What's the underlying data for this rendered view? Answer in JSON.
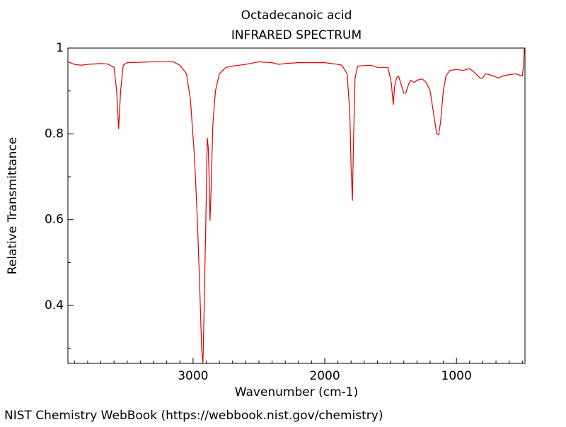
{
  "chart_data": {
    "type": "line",
    "title": "Octadecanoic acid",
    "subtitle": "INFRARED SPECTRUM",
    "xlabel": "Wavenumber (cm-1)",
    "ylabel": "Relative Transmittance",
    "source": "NIST Chemistry WebBook (https://webbook.nist.gov/chemistry)",
    "color": "#e00000",
    "xlim": [
      3950,
      480
    ],
    "ylim": [
      0.265,
      1
    ],
    "xticks": [
      3000,
      2000,
      1000
    ],
    "yticks": [
      0.4,
      0.6,
      0.8,
      1
    ],
    "xminorticks": [
      3900,
      3800,
      3700,
      3600,
      3500,
      3400,
      3300,
      3200,
      3100,
      2900,
      2800,
      2700,
      2600,
      2500,
      2400,
      2300,
      2200,
      2100,
      1900,
      1800,
      1700,
      1600,
      1500,
      1400,
      1300,
      1200,
      1100,
      900,
      800,
      700,
      600,
      500
    ],
    "yminorticks": [
      0.3,
      0.5,
      0.7,
      0.9
    ],
    "x": [
      3950,
      3900,
      3850,
      3800,
      3700,
      3650,
      3600,
      3580,
      3565,
      3550,
      3530,
      3500,
      3300,
      3150,
      3100,
      3050,
      3020,
      2990,
      2970,
      2950,
      2935,
      2925,
      2915,
      2900,
      2892,
      2885,
      2878,
      2871,
      2862,
      2850,
      2830,
      2800,
      2750,
      2700,
      2600,
      2500,
      2400,
      2350,
      2300,
      2200,
      2000,
      1900,
      1870,
      1830,
      1810,
      1800,
      1790,
      1782,
      1770,
      1750,
      1650,
      1600,
      1520,
      1495,
      1480,
      1470,
      1455,
      1440,
      1420,
      1400,
      1385,
      1370,
      1350,
      1320,
      1300,
      1260,
      1230,
      1200,
      1170,
      1150,
      1135,
      1120,
      1100,
      1080,
      1050,
      1000,
      950,
      900,
      870,
      820,
      800,
      780,
      750,
      720,
      680,
      650,
      600,
      550,
      500,
      490,
      485
    ],
    "values": [
      0.968,
      0.962,
      0.96,
      0.962,
      0.964,
      0.963,
      0.955,
      0.9,
      0.812,
      0.9,
      0.96,
      0.966,
      0.968,
      0.968,
      0.96,
      0.94,
      0.88,
      0.75,
      0.62,
      0.45,
      0.3,
      0.265,
      0.4,
      0.65,
      0.79,
      0.77,
      0.7,
      0.598,
      0.68,
      0.82,
      0.9,
      0.94,
      0.955,
      0.958,
      0.962,
      0.968,
      0.966,
      0.962,
      0.964,
      0.966,
      0.966,
      0.962,
      0.96,
      0.94,
      0.85,
      0.72,
      0.645,
      0.78,
      0.93,
      0.958,
      0.96,
      0.955,
      0.955,
      0.92,
      0.868,
      0.91,
      0.93,
      0.935,
      0.915,
      0.895,
      0.895,
      0.91,
      0.925,
      0.92,
      0.925,
      0.928,
      0.92,
      0.9,
      0.84,
      0.8,
      0.798,
      0.83,
      0.9,
      0.935,
      0.948,
      0.95,
      0.948,
      0.952,
      0.945,
      0.93,
      0.93,
      0.94,
      0.938,
      0.935,
      0.93,
      0.935,
      0.938,
      0.94,
      0.935,
      0.96,
      1.0
    ]
  }
}
